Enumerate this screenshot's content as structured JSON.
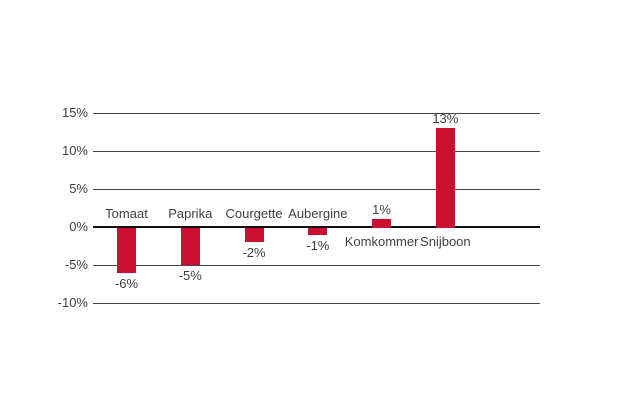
{
  "chart_data": {
    "type": "bar",
    "title": "",
    "xlabel": "",
    "ylabel": "",
    "categories": [
      "Tomaat",
      "Paprika",
      "Courgette",
      "Aubergine",
      "Komkommer",
      "Snijboon"
    ],
    "values": [
      -6,
      -5,
      -2,
      -1,
      1,
      13
    ],
    "value_labels": [
      "-6%",
      "-5%",
      "-2%",
      "-1%",
      "1%",
      "13%"
    ],
    "y_axis": {
      "tick_values": [
        15,
        10,
        5,
        0,
        -5,
        -10
      ],
      "tick_labels": [
        "15%",
        "10%",
        "5%",
        "0%",
        "-5%",
        "-10%"
      ],
      "range": [
        -10,
        15
      ],
      "unit": "%"
    },
    "grid": "horizontal",
    "legend": "none",
    "label_placement": "category labels on opposite side of zero axis from bar; value labels at bar ends",
    "colors": {
      "bar": "#cb0f30",
      "text": "#404040",
      "gridline": "#474747",
      "zero_axis": "#121212",
      "background": "#ffffff"
    }
  }
}
